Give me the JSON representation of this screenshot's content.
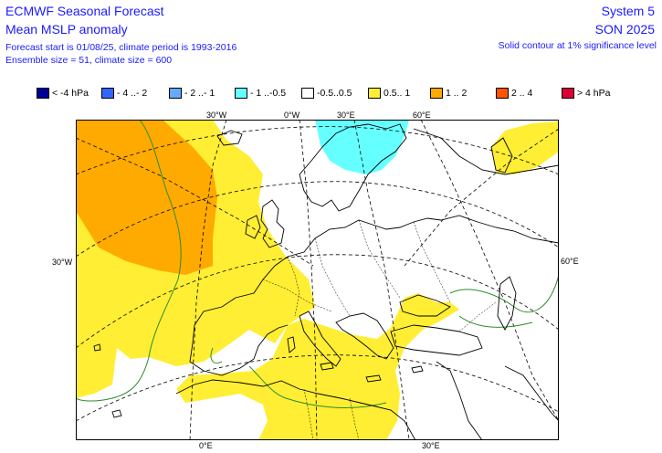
{
  "header": {
    "title": "ECMWF Seasonal Forecast",
    "subtitle": "Mean MSLP anomaly",
    "line1": "Forecast start is 01/08/25, climate period is 1993-2016",
    "line2": "Ensemble size = 51, climate size = 600",
    "system": "System 5",
    "season": "SON 2025",
    "note": "Solid contour at 1% significance level"
  },
  "legend": [
    {
      "label": "< -4 hPa",
      "color": "#000099"
    },
    {
      "label": "- 4 ..- 2",
      "color": "#3366ff"
    },
    {
      "label": "- 2 ..- 1",
      "color": "#66aaff"
    },
    {
      "label": "- 1 ..-0.5",
      "color": "#66ffff"
    },
    {
      "label": "-0.5..0.5",
      "color": "#ffffff"
    },
    {
      "label": "0.5.. 1",
      "color": "#ffee33"
    },
    {
      "label": "1 .. 2",
      "color": "#ffaa00"
    },
    {
      "label": "2 .. 4",
      "color": "#ff5500"
    },
    {
      "label": "> 4 hPa",
      "color": "#dd0033"
    }
  ],
  "map_labels": {
    "top_30w": "30°W",
    "top_0": "0°W",
    "top_30e": "30°E",
    "top_60e": "60°E",
    "left_30w": "30°W",
    "right_60e": "60°E",
    "bottom_0": "0°E",
    "bottom_30e": "30°E"
  },
  "colors": {
    "land": "#000000",
    "significance": "#2e8b2e",
    "grid": "#000000"
  }
}
